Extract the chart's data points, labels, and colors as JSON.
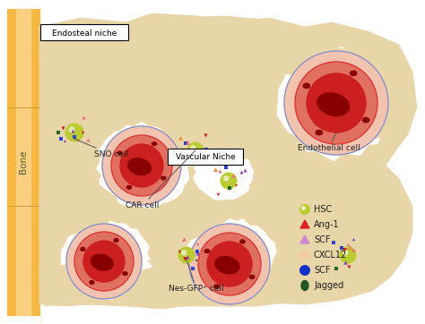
{
  "background_color": "#ffffff",
  "bone_color": "#F5B942",
  "bone_stripe_color": "#F9D080",
  "trabecular_color": "#E8D5A8",
  "trabecular_edge_color": "#C8B07A",
  "bc_outer_color": "#F2C4B0",
  "bc_ring_color": "#E07060",
  "bc_inner_color": "#CC2020",
  "bc_nuc_color": "#880000",
  "bc_outline_color": "#7788CC",
  "hsc_color": "#BBCC33",
  "hsc_edge_color": "#889922",
  "text_color": "#222222",
  "ann_color": "#555555",
  "legend_hsc_color": "#BBCC33",
  "legend_ang1_color": "#DD2222",
  "legend_scf_color": "#CC88CC",
  "legend_cxcl12_color": "#F5C8A0",
  "legend_scf2_color": "#1133CC",
  "legend_jagged_color": "#225522",
  "sig_colors": [
    "#EE6688",
    "#CC2222",
    "#8844BB",
    "#3344CC",
    "#226622",
    "#EE8833"
  ],
  "sig_shapes": [
    "^",
    "v",
    "^",
    "s",
    "s",
    "^"
  ]
}
